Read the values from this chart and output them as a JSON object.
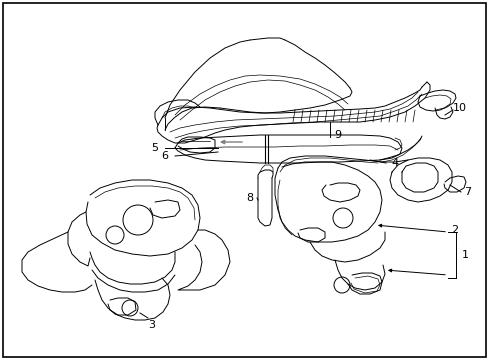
{
  "background_color": "#ffffff",
  "border_color": "#000000",
  "line_color": "#000000",
  "figsize": [
    4.89,
    3.6
  ],
  "dpi": 100,
  "border_lw": 1.2
}
